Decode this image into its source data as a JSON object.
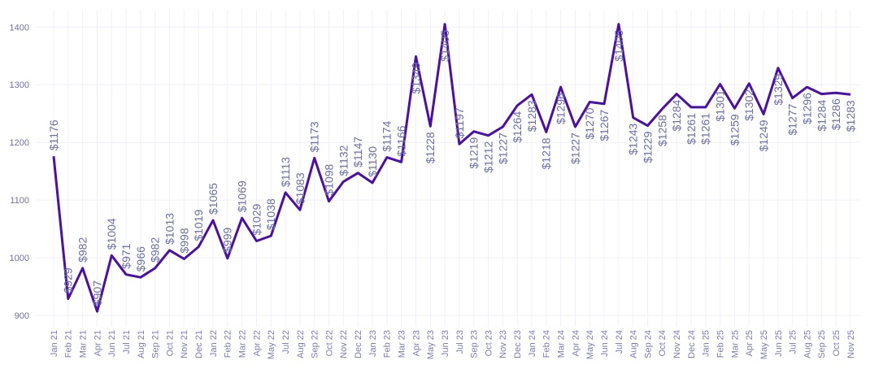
{
  "chart_data": {
    "type": "line",
    "title": "",
    "xlabel": "",
    "ylabel": "",
    "ylim": [
      886,
      1430
    ],
    "yticks": [
      900,
      1000,
      1100,
      1200,
      1300,
      1400
    ],
    "grid": true,
    "line_color": "#4a0fa6",
    "label_prefix": "$",
    "categories": [
      "Jan 21",
      "Feb 21",
      "Mar 21",
      "Apr 21",
      "Jun 21",
      "Jul 21",
      "Aug 21",
      "Sep 21",
      "Oct 21",
      "Nov 21",
      "Dec 21",
      "Jan 22",
      "Feb 22",
      "Mar 22",
      "Apr 22",
      "May 22",
      "Jul 22",
      "Aug 22",
      "Sep 22",
      "Oct 22",
      "Nov 22",
      "Dec 22",
      "Jan 23",
      "Feb 23",
      "Mar 23",
      "Apr 23",
      "May 23",
      "Jun 23",
      "Jul 23",
      "Sep 23",
      "Oct 23",
      "Nov 23",
      "Dec 23",
      "Jan 24",
      "Feb 24",
      "Mar 24",
      "Apr 24",
      "May 24",
      "Jun 24",
      "Jul 24",
      "Aug 24",
      "Sep 24",
      "Oct 24",
      "Nov 24",
      "Dec 24",
      "Jan 25",
      "Feb 25",
      "Mar 25",
      "Apr 25",
      "May 25",
      "Jun 25",
      "Jul 25",
      "Aug 25",
      "Sep 25",
      "Oct 25",
      "Nov 25"
    ],
    "values": [
      1176,
      929,
      982,
      907,
      1004,
      971,
      966,
      982,
      1013,
      998,
      1019,
      1065,
      999,
      1069,
      1029,
      1038,
      1113,
      1083,
      1173,
      1098,
      1132,
      1147,
      1130,
      1174,
      1166,
      1349,
      1228,
      1405,
      1197,
      1219,
      1212,
      1227,
      1264,
      1283,
      1218,
      1296,
      1227,
      1270,
      1267,
      1405,
      1243,
      1229,
      1258,
      1284,
      1261,
      1261,
      1301,
      1259,
      1302,
      1249,
      1329,
      1277,
      1296,
      1284,
      1286,
      1283
    ]
  }
}
